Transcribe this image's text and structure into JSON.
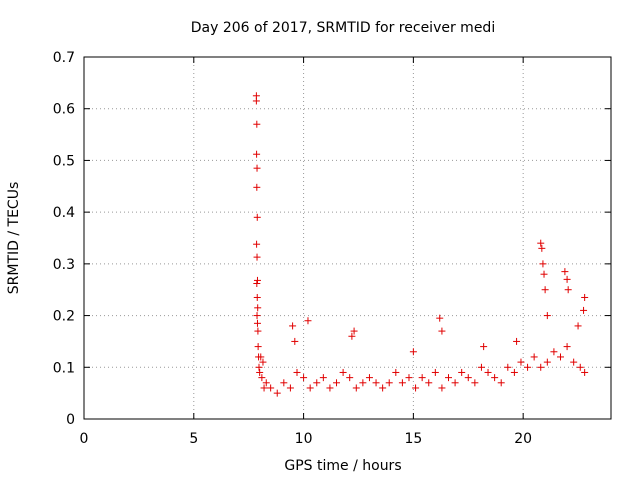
{
  "chart_data": {
    "type": "scatter",
    "title": "Day 206 of 2017, SRMTID for receiver medi",
    "xlabel": "GPS time / hours",
    "ylabel": "SRMTID / TECUs",
    "xlim": [
      0,
      24
    ],
    "ylim": [
      0,
      0.7
    ],
    "xticks": [
      0,
      5,
      10,
      15,
      20
    ],
    "xtick_labels": [
      "0",
      "5",
      "10",
      "15",
      "20"
    ],
    "yticks": [
      0,
      0.1,
      0.2,
      0.3,
      0.4,
      0.5,
      0.6,
      0.7
    ],
    "ytick_labels": [
      "0",
      "0.1",
      "0.2",
      "0.3",
      "0.4",
      "0.5",
      "0.6",
      "0.7"
    ],
    "grid": true,
    "marker": "+",
    "marker_color": "#e00000",
    "series": [
      {
        "name": "SRMTID",
        "x": [
          7.85,
          7.85,
          7.87,
          7.86,
          7.88,
          7.87,
          7.89,
          7.86,
          7.88,
          7.9,
          7.87,
          7.89,
          7.91,
          7.88,
          7.9,
          7.92,
          7.93,
          7.95,
          7.97,
          8.0,
          8.05,
          8.1,
          8.15,
          8.2,
          8.3,
          8.5,
          8.8,
          9.1,
          9.4,
          9.7,
          10.0,
          10.3,
          10.6,
          10.9,
          11.2,
          11.5,
          11.8,
          12.1,
          12.4,
          12.7,
          13.0,
          13.3,
          13.6,
          13.9,
          14.2,
          14.5,
          14.8,
          15.1,
          15.4,
          15.7,
          16.0,
          16.3,
          16.6,
          16.9,
          17.2,
          17.5,
          17.8,
          18.1,
          18.4,
          18.7,
          19.0,
          19.3,
          19.6,
          19.9,
          20.2,
          20.5,
          20.8,
          21.1,
          21.4,
          21.7,
          22.0,
          22.3,
          22.6,
          22.8,
          9.5,
          10.2,
          12.3,
          16.2,
          16.3,
          20.8,
          20.85,
          20.9,
          20.95,
          21.0,
          21.1,
          21.9,
          22.0,
          22.05,
          22.5,
          22.8,
          22.75,
          9.6,
          12.2,
          15.0,
          18.2,
          19.7
        ],
        "y": [
          0.625,
          0.615,
          0.57,
          0.512,
          0.485,
          0.448,
          0.39,
          0.338,
          0.313,
          0.268,
          0.262,
          0.235,
          0.215,
          0.2,
          0.185,
          0.17,
          0.14,
          0.12,
          0.1,
          0.09,
          0.12,
          0.08,
          0.11,
          0.06,
          0.07,
          0.06,
          0.05,
          0.07,
          0.06,
          0.09,
          0.08,
          0.06,
          0.07,
          0.08,
          0.06,
          0.07,
          0.09,
          0.08,
          0.06,
          0.07,
          0.08,
          0.07,
          0.06,
          0.07,
          0.09,
          0.07,
          0.08,
          0.06,
          0.08,
          0.07,
          0.09,
          0.06,
          0.08,
          0.07,
          0.09,
          0.08,
          0.07,
          0.1,
          0.09,
          0.08,
          0.07,
          0.1,
          0.09,
          0.11,
          0.1,
          0.12,
          0.1,
          0.11,
          0.13,
          0.12,
          0.14,
          0.11,
          0.1,
          0.09,
          0.18,
          0.19,
          0.17,
          0.195,
          0.17,
          0.34,
          0.33,
          0.3,
          0.28,
          0.25,
          0.2,
          0.285,
          0.27,
          0.25,
          0.18,
          0.235,
          0.21,
          0.15,
          0.16,
          0.13,
          0.14,
          0.15
        ]
      }
    ]
  }
}
